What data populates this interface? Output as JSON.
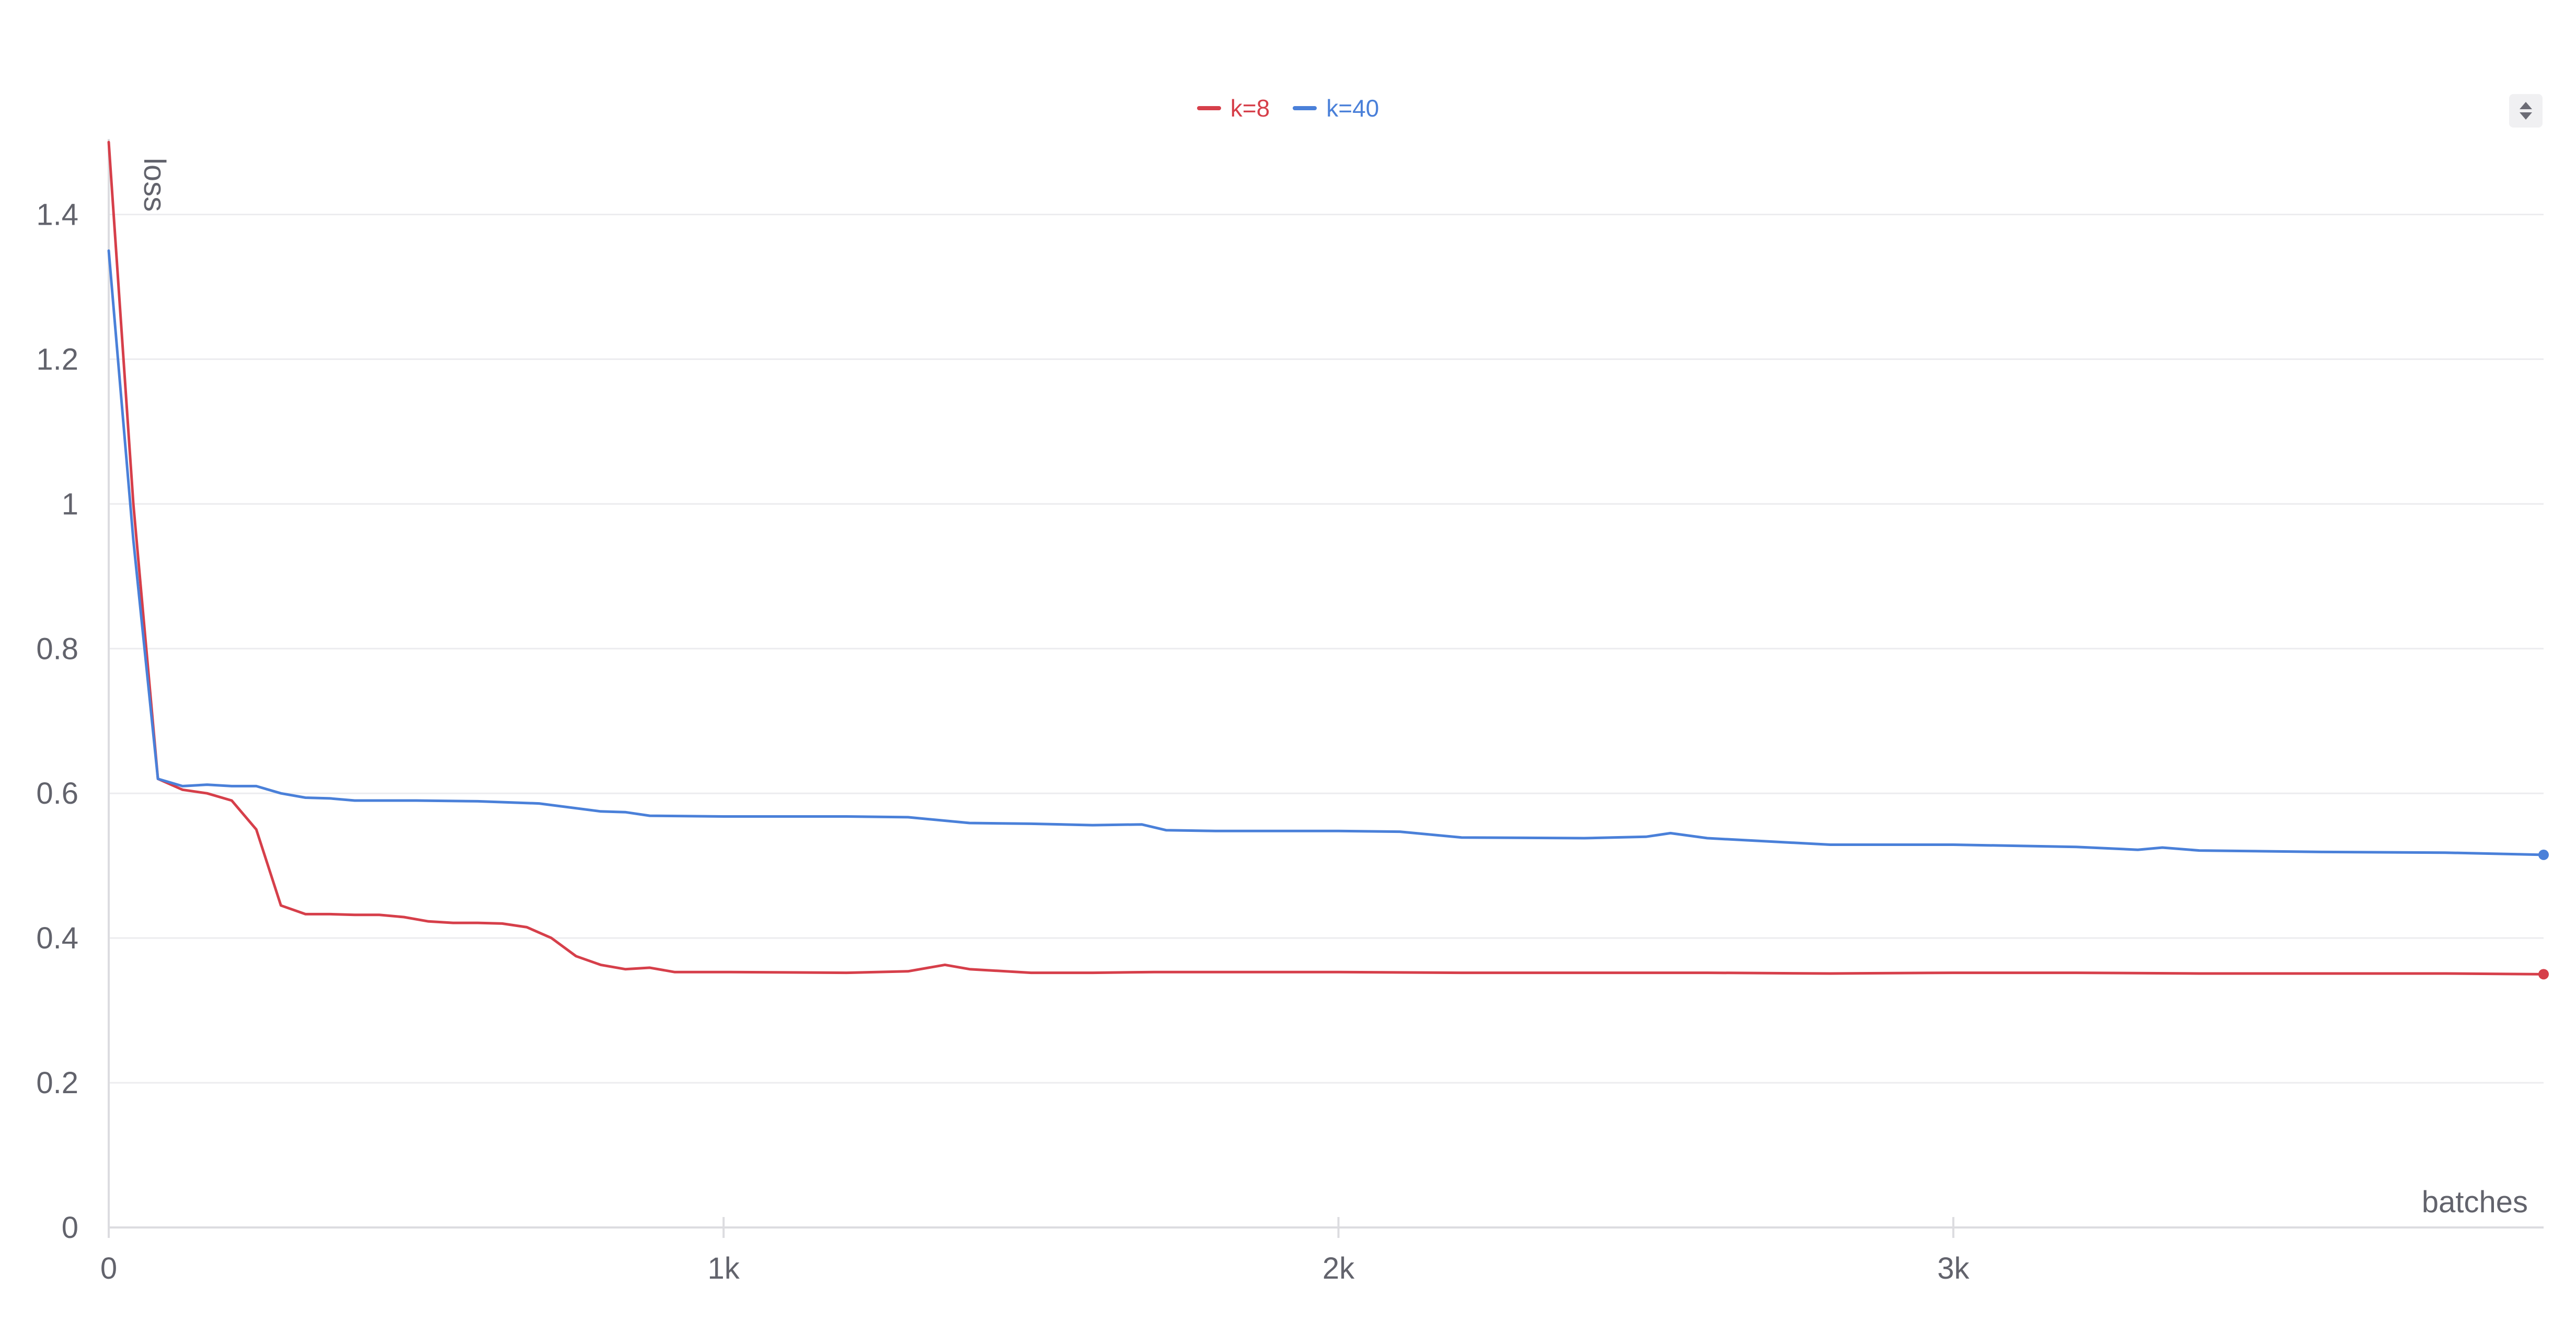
{
  "chart_data": {
    "type": "line",
    "xlabel": "batches",
    "ylabel": "loss",
    "xlim": [
      0,
      3960
    ],
    "ylim": [
      0,
      1.5
    ],
    "x_ticks": [
      {
        "value": 0,
        "label": "0"
      },
      {
        "value": 1000,
        "label": "1k"
      },
      {
        "value": 2000,
        "label": "2k"
      },
      {
        "value": 3000,
        "label": "3k"
      }
    ],
    "y_ticks": [
      {
        "value": 0,
        "label": "0"
      },
      {
        "value": 0.2,
        "label": "0.2"
      },
      {
        "value": 0.4,
        "label": "0.4"
      },
      {
        "value": 0.6,
        "label": "0.6"
      },
      {
        "value": 0.8,
        "label": "0.8"
      },
      {
        "value": 1,
        "label": "1"
      },
      {
        "value": 1.2,
        "label": "1.2"
      },
      {
        "value": 1.4,
        "label": "1.4"
      }
    ],
    "grid": true,
    "legend_position": "top-center",
    "series": [
      {
        "name": "k=8",
        "color": "#d63f4a",
        "x": [
          0,
          40,
          80,
          120,
          160,
          200,
          240,
          280,
          320,
          360,
          400,
          440,
          480,
          520,
          560,
          600,
          640,
          680,
          720,
          760,
          800,
          840,
          880,
          920,
          1000,
          1200,
          1300,
          1360,
          1400,
          1500,
          1600,
          1700,
          1800,
          2000,
          2200,
          2400,
          2600,
          2800,
          3000,
          3200,
          3400,
          3600,
          3800,
          3960
        ],
        "y": [
          1.5,
          1.0,
          0.62,
          0.605,
          0.6,
          0.59,
          0.55,
          0.445,
          0.433,
          0.433,
          0.432,
          0.432,
          0.429,
          0.423,
          0.421,
          0.421,
          0.42,
          0.415,
          0.4,
          0.375,
          0.363,
          0.357,
          0.359,
          0.353,
          0.353,
          0.352,
          0.354,
          0.363,
          0.357,
          0.352,
          0.352,
          0.353,
          0.353,
          0.353,
          0.352,
          0.352,
          0.352,
          0.351,
          0.352,
          0.352,
          0.351,
          0.351,
          0.351,
          0.35
        ]
      },
      {
        "name": "k=40",
        "color": "#4a80d9",
        "x": [
          0,
          40,
          80,
          120,
          160,
          200,
          240,
          280,
          320,
          360,
          400,
          500,
          600,
          700,
          800,
          840,
          880,
          1000,
          1200,
          1300,
          1400,
          1500,
          1600,
          1680,
          1720,
          1800,
          2000,
          2100,
          2200,
          2400,
          2500,
          2540,
          2600,
          2800,
          3000,
          3200,
          3300,
          3340,
          3400,
          3600,
          3800,
          3960
        ],
        "y": [
          1.35,
          0.95,
          0.62,
          0.61,
          0.612,
          0.61,
          0.61,
          0.6,
          0.594,
          0.593,
          0.59,
          0.59,
          0.589,
          0.586,
          0.575,
          0.574,
          0.569,
          0.568,
          0.568,
          0.567,
          0.559,
          0.558,
          0.556,
          0.557,
          0.549,
          0.548,
          0.548,
          0.547,
          0.539,
          0.538,
          0.54,
          0.545,
          0.538,
          0.529,
          0.529,
          0.526,
          0.522,
          0.525,
          0.521,
          0.519,
          0.518,
          0.515
        ]
      }
    ]
  }
}
